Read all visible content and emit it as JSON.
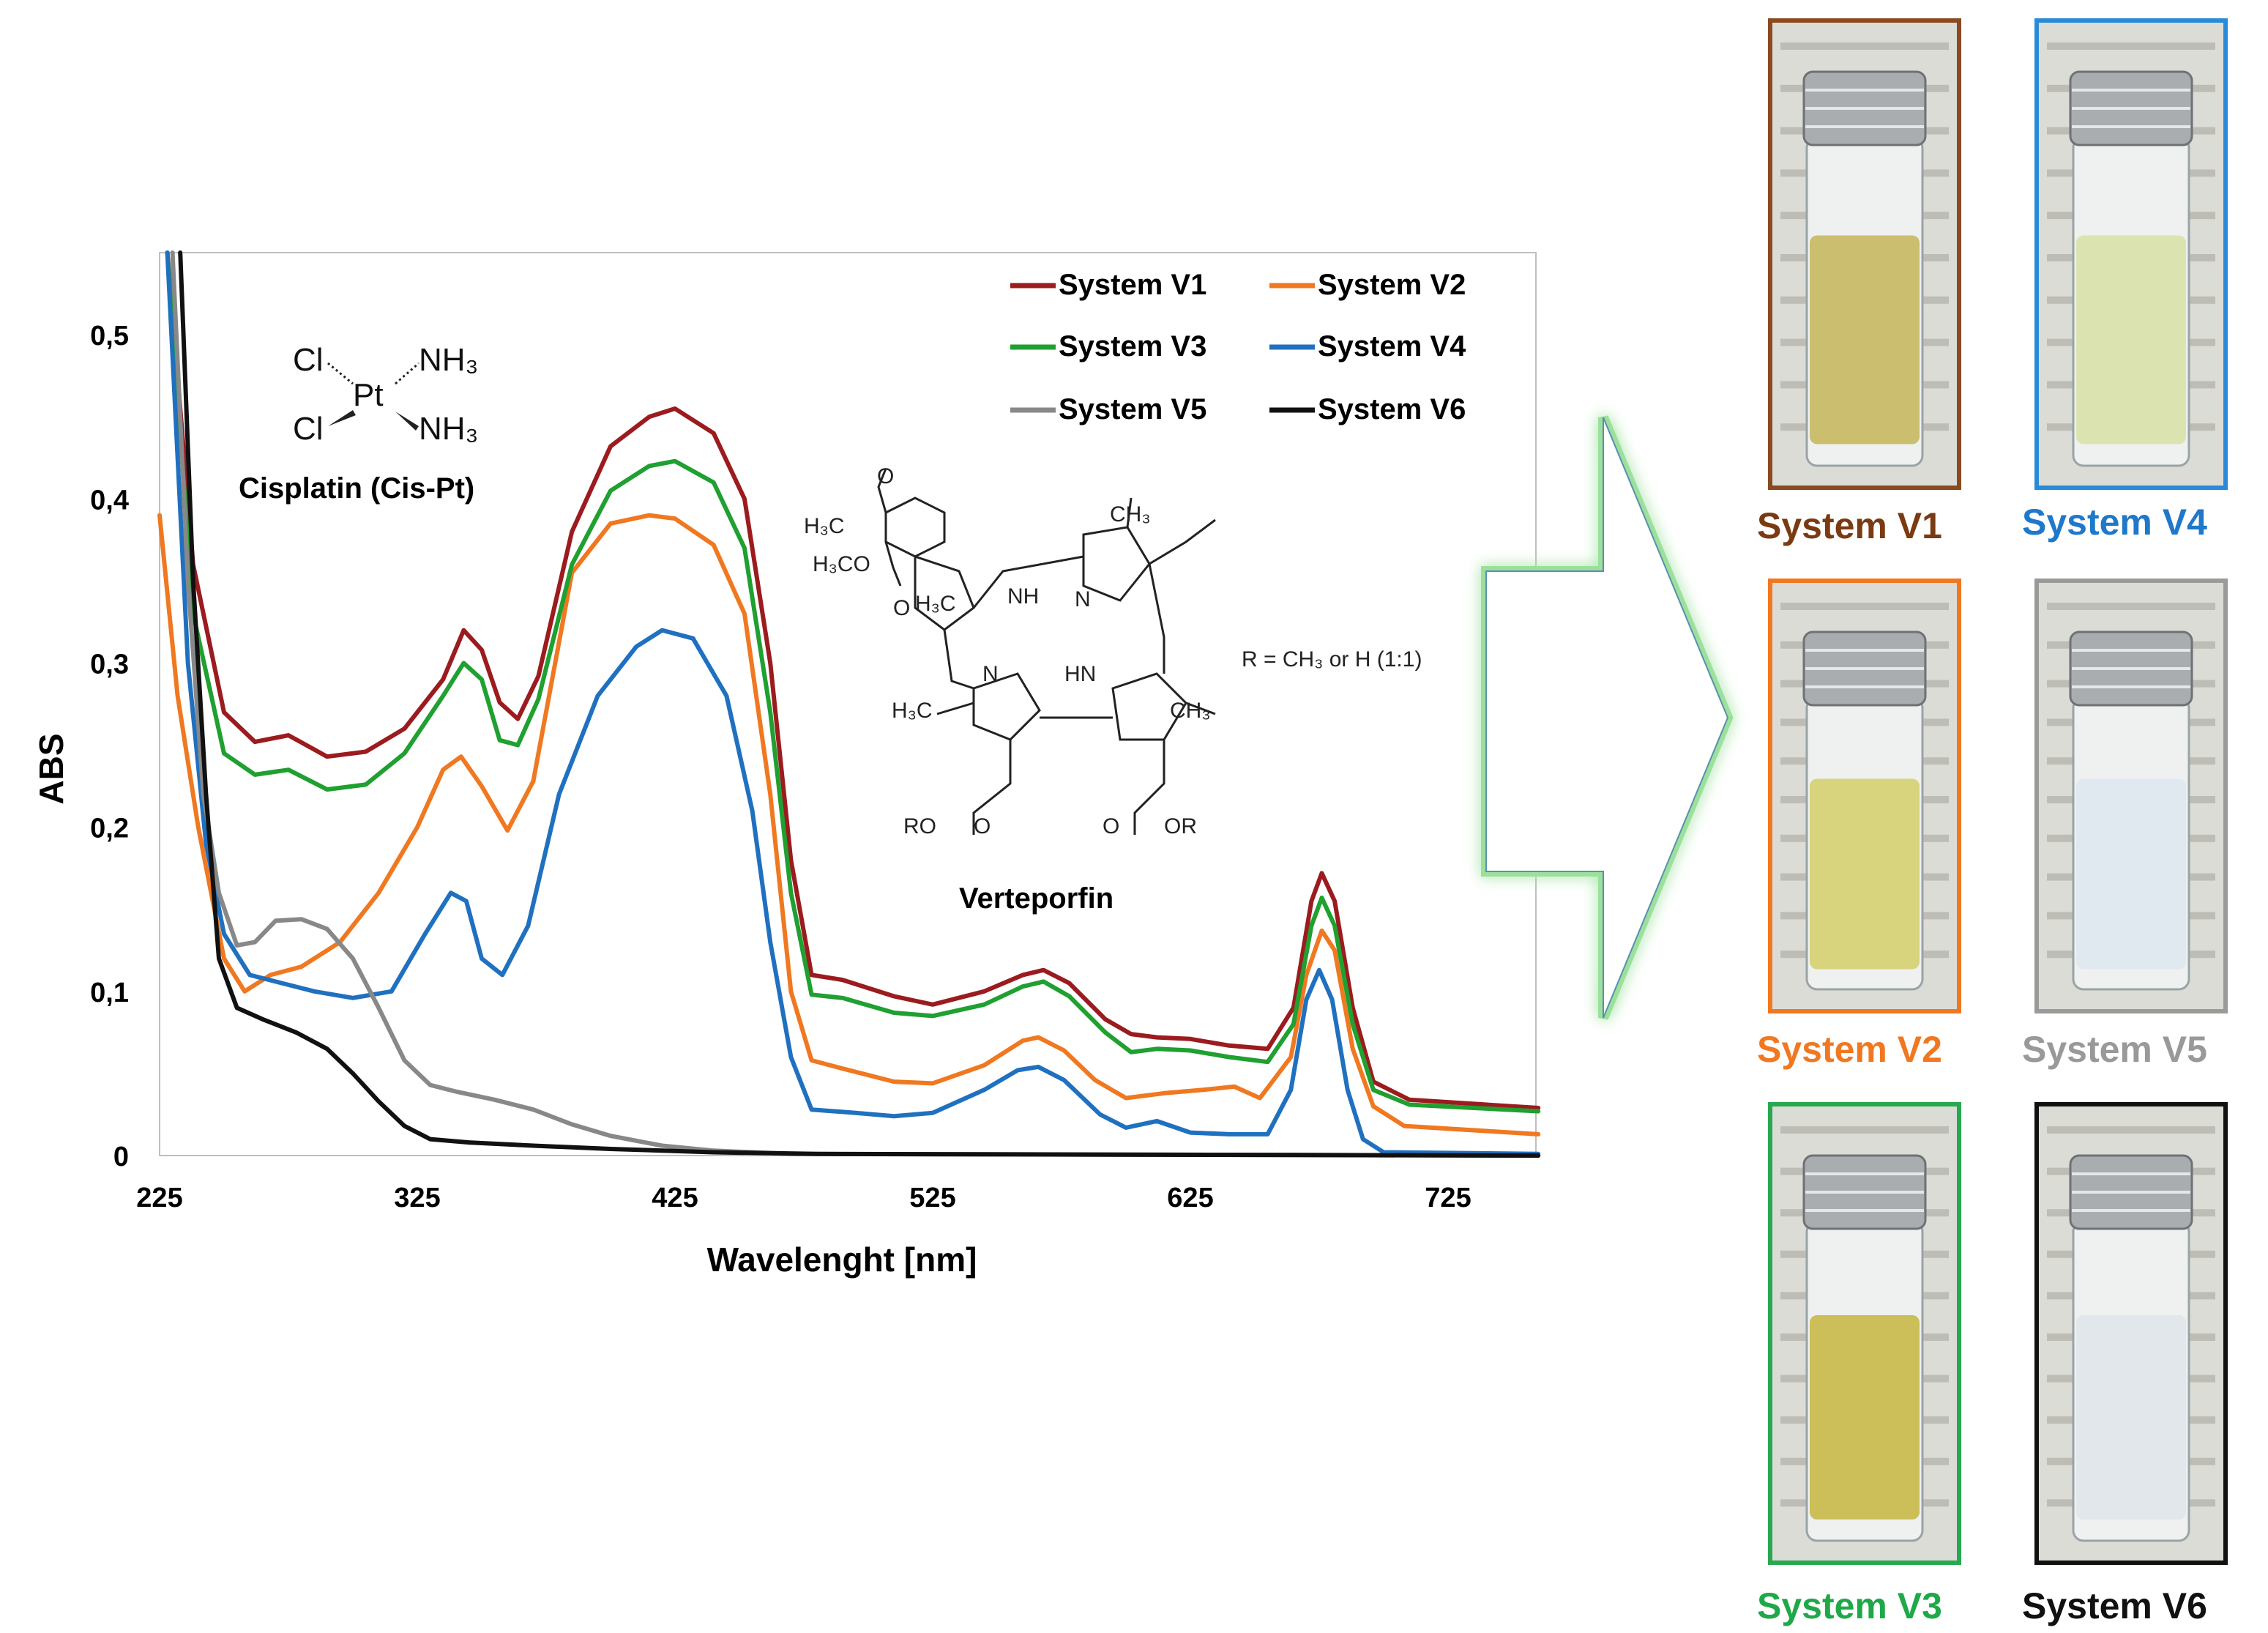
{
  "chart_data": {
    "type": "line",
    "title": "",
    "xlabel": "Wavelenght [nm]",
    "ylabel": "ABS",
    "xlim": [
      225,
      760
    ],
    "ylim": [
      0,
      0.55
    ],
    "xticks": [
      "225",
      "325",
      "425",
      "525",
      "625",
      "725"
    ],
    "yticks": [
      "0",
      "0,1",
      "0,2",
      "0,3",
      "0,4",
      "0,5"
    ],
    "legend_position": "top-right",
    "series": [
      {
        "name": "System V1",
        "color": "#9b1b1e",
        "points": [
          [
            228,
            0.55
          ],
          [
            238,
            0.36
          ],
          [
            250,
            0.27
          ],
          [
            262,
            0.252
          ],
          [
            275,
            0.256
          ],
          [
            290,
            0.243
          ],
          [
            305,
            0.246
          ],
          [
            320,
            0.26
          ],
          [
            335,
            0.29
          ],
          [
            343,
            0.32
          ],
          [
            350,
            0.308
          ],
          [
            357,
            0.276
          ],
          [
            364,
            0.266
          ],
          [
            372,
            0.292
          ],
          [
            385,
            0.38
          ],
          [
            400,
            0.432
          ],
          [
            415,
            0.45
          ],
          [
            425,
            0.455
          ],
          [
            440,
            0.44
          ],
          [
            452,
            0.4
          ],
          [
            462,
            0.3
          ],
          [
            470,
            0.18
          ],
          [
            478,
            0.11
          ],
          [
            490,
            0.107
          ],
          [
            510,
            0.097
          ],
          [
            525,
            0.092
          ],
          [
            545,
            0.1
          ],
          [
            560,
            0.11
          ],
          [
            568,
            0.113
          ],
          [
            578,
            0.105
          ],
          [
            592,
            0.083
          ],
          [
            602,
            0.074
          ],
          [
            612,
            0.072
          ],
          [
            625,
            0.071
          ],
          [
            640,
            0.067
          ],
          [
            655,
            0.065
          ],
          [
            665,
            0.09
          ],
          [
            672,
            0.155
          ],
          [
            676,
            0.172
          ],
          [
            681,
            0.155
          ],
          [
            688,
            0.09
          ],
          [
            696,
            0.045
          ],
          [
            710,
            0.034
          ],
          [
            760,
            0.029
          ]
        ]
      },
      {
        "name": "System V2",
        "color": "#f07820",
        "points": [
          [
            225,
            0.39
          ],
          [
            232,
            0.28
          ],
          [
            240,
            0.2
          ],
          [
            250,
            0.12
          ],
          [
            258,
            0.1
          ],
          [
            268,
            0.11
          ],
          [
            280,
            0.115
          ],
          [
            295,
            0.13
          ],
          [
            310,
            0.16
          ],
          [
            325,
            0.2
          ],
          [
            335,
            0.235
          ],
          [
            342,
            0.243
          ],
          [
            350,
            0.225
          ],
          [
            360,
            0.198
          ],
          [
            370,
            0.228
          ],
          [
            385,
            0.355
          ],
          [
            400,
            0.385
          ],
          [
            415,
            0.39
          ],
          [
            425,
            0.388
          ],
          [
            440,
            0.372
          ],
          [
            452,
            0.33
          ],
          [
            462,
            0.22
          ],
          [
            470,
            0.1
          ],
          [
            478,
            0.058
          ],
          [
            490,
            0.053
          ],
          [
            510,
            0.045
          ],
          [
            525,
            0.044
          ],
          [
            545,
            0.055
          ],
          [
            560,
            0.07
          ],
          [
            566,
            0.072
          ],
          [
            576,
            0.064
          ],
          [
            588,
            0.046
          ],
          [
            600,
            0.035
          ],
          [
            615,
            0.038
          ],
          [
            630,
            0.04
          ],
          [
            642,
            0.042
          ],
          [
            652,
            0.035
          ],
          [
            664,
            0.06
          ],
          [
            670,
            0.11
          ],
          [
            676,
            0.137
          ],
          [
            681,
            0.125
          ],
          [
            688,
            0.065
          ],
          [
            696,
            0.03
          ],
          [
            708,
            0.018
          ],
          [
            760,
            0.013
          ]
        ]
      },
      {
        "name": "System V3",
        "color": "#1fa030",
        "points": [
          [
            228,
            0.55
          ],
          [
            238,
            0.33
          ],
          [
            250,
            0.245
          ],
          [
            262,
            0.232
          ],
          [
            275,
            0.235
          ],
          [
            290,
            0.223
          ],
          [
            305,
            0.226
          ],
          [
            320,
            0.245
          ],
          [
            335,
            0.28
          ],
          [
            343,
            0.3
          ],
          [
            350,
            0.29
          ],
          [
            357,
            0.253
          ],
          [
            364,
            0.25
          ],
          [
            372,
            0.278
          ],
          [
            385,
            0.36
          ],
          [
            400,
            0.405
          ],
          [
            415,
            0.42
          ],
          [
            425,
            0.423
          ],
          [
            440,
            0.41
          ],
          [
            452,
            0.37
          ],
          [
            462,
            0.27
          ],
          [
            470,
            0.16
          ],
          [
            478,
            0.098
          ],
          [
            490,
            0.096
          ],
          [
            510,
            0.087
          ],
          [
            525,
            0.085
          ],
          [
            545,
            0.092
          ],
          [
            560,
            0.103
          ],
          [
            568,
            0.106
          ],
          [
            578,
            0.097
          ],
          [
            592,
            0.075
          ],
          [
            602,
            0.063
          ],
          [
            612,
            0.065
          ],
          [
            625,
            0.064
          ],
          [
            640,
            0.06
          ],
          [
            655,
            0.057
          ],
          [
            665,
            0.08
          ],
          [
            672,
            0.14
          ],
          [
            676,
            0.157
          ],
          [
            681,
            0.14
          ],
          [
            688,
            0.08
          ],
          [
            696,
            0.04
          ],
          [
            710,
            0.031
          ],
          [
            760,
            0.027
          ]
        ]
      },
      {
        "name": "System V4",
        "color": "#2070c0",
        "points": [
          [
            228,
            0.55
          ],
          [
            236,
            0.3
          ],
          [
            243,
            0.19
          ],
          [
            250,
            0.135
          ],
          [
            260,
            0.11
          ],
          [
            270,
            0.106
          ],
          [
            285,
            0.1
          ],
          [
            300,
            0.096
          ],
          [
            315,
            0.1
          ],
          [
            328,
            0.135
          ],
          [
            338,
            0.16
          ],
          [
            344,
            0.155
          ],
          [
            350,
            0.12
          ],
          [
            358,
            0.11
          ],
          [
            368,
            0.14
          ],
          [
            380,
            0.22
          ],
          [
            395,
            0.28
          ],
          [
            410,
            0.31
          ],
          [
            420,
            0.32
          ],
          [
            432,
            0.315
          ],
          [
            445,
            0.28
          ],
          [
            455,
            0.21
          ],
          [
            462,
            0.13
          ],
          [
            470,
            0.06
          ],
          [
            478,
            0.028
          ],
          [
            495,
            0.026
          ],
          [
            510,
            0.024
          ],
          [
            525,
            0.026
          ],
          [
            545,
            0.04
          ],
          [
            558,
            0.052
          ],
          [
            566,
            0.054
          ],
          [
            576,
            0.046
          ],
          [
            590,
            0.025
          ],
          [
            600,
            0.017
          ],
          [
            612,
            0.021
          ],
          [
            625,
            0.014
          ],
          [
            640,
            0.013
          ],
          [
            655,
            0.013
          ],
          [
            664,
            0.04
          ],
          [
            670,
            0.095
          ],
          [
            675,
            0.113
          ],
          [
            680,
            0.095
          ],
          [
            686,
            0.04
          ],
          [
            692,
            0.01
          ],
          [
            700,
            0.002
          ],
          [
            760,
            0.001
          ]
        ]
      },
      {
        "name": "System V5",
        "color": "#888888",
        "points": [
          [
            230,
            0.55
          ],
          [
            236,
            0.35
          ],
          [
            242,
            0.22
          ],
          [
            248,
            0.16
          ],
          [
            255,
            0.128
          ],
          [
            262,
            0.13
          ],
          [
            270,
            0.143
          ],
          [
            280,
            0.144
          ],
          [
            290,
            0.138
          ],
          [
            300,
            0.12
          ],
          [
            310,
            0.09
          ],
          [
            320,
            0.058
          ],
          [
            330,
            0.043
          ],
          [
            340,
            0.039
          ],
          [
            355,
            0.034
          ],
          [
            370,
            0.028
          ],
          [
            385,
            0.019
          ],
          [
            400,
            0.012
          ],
          [
            420,
            0.006
          ],
          [
            440,
            0.003
          ],
          [
            470,
            0.001
          ],
          [
            760,
            0.0
          ]
        ]
      },
      {
        "name": "System V6",
        "color": "#111111",
        "points": [
          [
            233,
            0.55
          ],
          [
            238,
            0.35
          ],
          [
            243,
            0.22
          ],
          [
            248,
            0.12
          ],
          [
            255,
            0.09
          ],
          [
            265,
            0.083
          ],
          [
            278,
            0.075
          ],
          [
            290,
            0.065
          ],
          [
            300,
            0.05
          ],
          [
            310,
            0.033
          ],
          [
            320,
            0.018
          ],
          [
            330,
            0.01
          ],
          [
            345,
            0.008
          ],
          [
            370,
            0.006
          ],
          [
            400,
            0.004
          ],
          [
            440,
            0.002
          ],
          [
            480,
            0.001
          ],
          [
            760,
            0.0
          ]
        ]
      }
    ]
  },
  "annotations": {
    "cisplatin_name": "Cisplatin (Cis-Pt)",
    "verteporfin_name": "Verteporfin",
    "r_group": "R = CH₃ or H (1:1)",
    "cl": "Cl",
    "pt": "Pt",
    "nh3": "NH₃",
    "h3c": "H₃C",
    "ch3": "CH₃",
    "h3co": "H₃CO",
    "nh": "NH",
    "hn": "HN",
    "n": "N",
    "o": "O",
    "ro": "RO",
    "or": "OR"
  },
  "photos": [
    {
      "label": "System V1",
      "label_color": "#7a3a12",
      "frame_color": "#8a4a20",
      "liquid": "#c8b860"
    },
    {
      "label": "System V4",
      "label_color": "#1f78c8",
      "frame_color": "#2a8ad8",
      "liquid": "#d8e2a8"
    },
    {
      "label": "System V2",
      "label_color": "#f07820",
      "frame_color": "#f07820",
      "liquid": "#d4d070"
    },
    {
      "label": "System V5",
      "label_color": "#999999",
      "frame_color": "#9a9a9a",
      "liquid": "#dde8ee"
    },
    {
      "label": "System V3",
      "label_color": "#1fa848",
      "frame_color": "#28a850",
      "liquid": "#c8b848"
    },
    {
      "label": "System V6",
      "label_color": "#111111",
      "frame_color": "#111111",
      "liquid": "#dfe6ea"
    }
  ]
}
